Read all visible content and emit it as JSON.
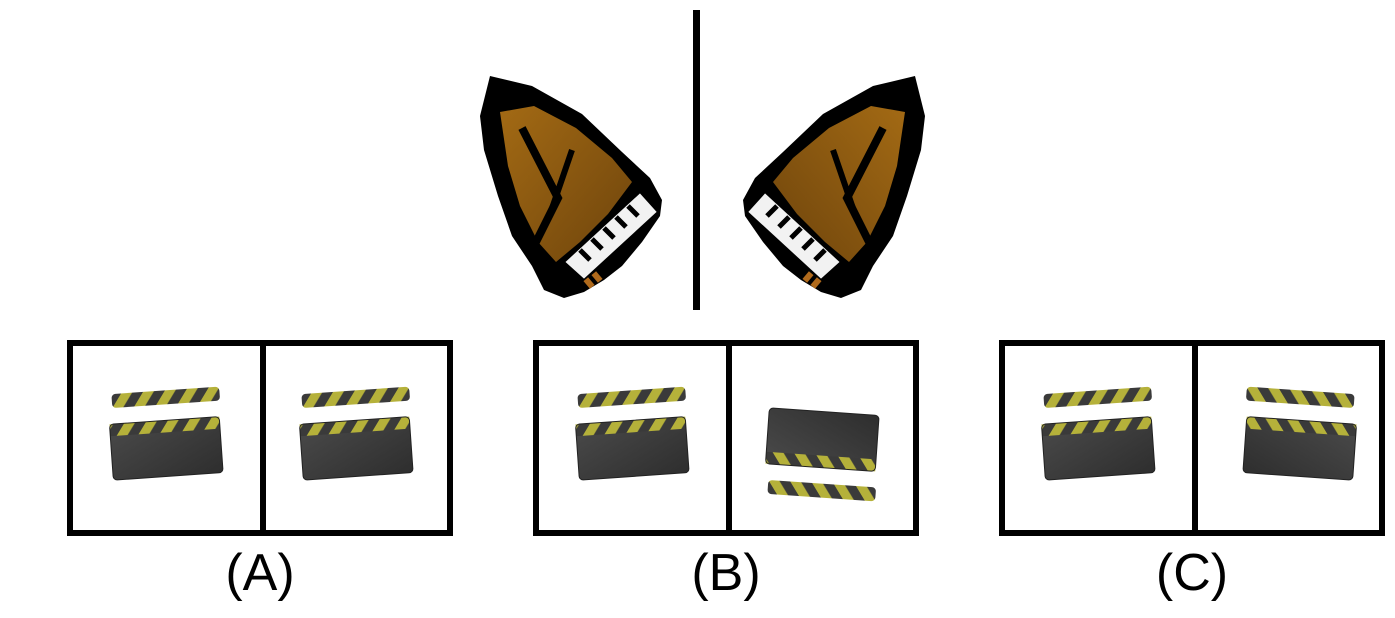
{
  "reference": {
    "left_icon": "grand-piano-icon",
    "right_icon": "grand-piano-mirrored-icon"
  },
  "options": [
    {
      "label": "(A)",
      "left_icon": "clapperboard-icon",
      "right_icon": "clapperboard-icon"
    },
    {
      "label": "(B)",
      "left_icon": "clapperboard-icon",
      "right_icon": "clapperboard-flipped-icon"
    },
    {
      "label": "(C)",
      "left_icon": "clapperboard-icon",
      "right_icon": "clapperboard-mirrored-icon"
    }
  ],
  "colors": {
    "frame": "#000000",
    "board": "#3a3a3a",
    "stripe_yellow": "#b5b13a",
    "piano_wood": "#8a5a12",
    "piano_body": "#000000"
  }
}
